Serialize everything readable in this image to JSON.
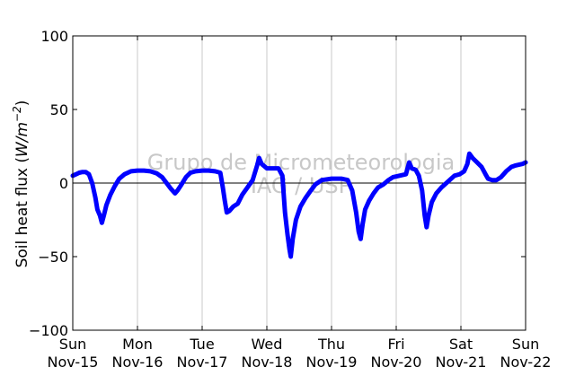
{
  "chart_data": {
    "type": "line",
    "ylabel_prefix": "Soil heat flux (",
    "ylabel_unit": "W/m",
    "ylabel_exp": "−2",
    "ylabel_suffix": ")",
    "ylim": [
      -100,
      100
    ],
    "yticks": [
      {
        "value": 100,
        "label": "100"
      },
      {
        "value": 50,
        "label": "50"
      },
      {
        "value": 0,
        "label": "0"
      },
      {
        "value": -50,
        "label": "−50"
      },
      {
        "value": -100,
        "label": "−100"
      }
    ],
    "xlim": [
      0,
      7
    ],
    "xticks": [
      {
        "value": 0,
        "day": "Sun",
        "date": "Nov-15"
      },
      {
        "value": 1,
        "day": "Mon",
        "date": "Nov-16"
      },
      {
        "value": 2,
        "day": "Tue",
        "date": "Nov-17"
      },
      {
        "value": 3,
        "day": "Wed",
        "date": "Nov-18"
      },
      {
        "value": 4,
        "day": "Thu",
        "date": "Nov-19"
      },
      {
        "value": 5,
        "day": "Fri",
        "date": "Nov-20"
      },
      {
        "value": 6,
        "day": "Sat",
        "date": "Nov-21"
      },
      {
        "value": 7,
        "day": "Sun",
        "date": "Nov-22"
      }
    ],
    "grid": "vertical",
    "zero_line": true,
    "watermark": [
      "Grupo de Micrometeorologia",
      "IAG / USP"
    ],
    "colors": {
      "series": "#0000ff",
      "grid": "#c8c8c8",
      "axis": "#000000",
      "watermark": "#c8c8c8"
    },
    "series": [
      {
        "points": [
          [
            0.0,
            5
          ],
          [
            0.05,
            6
          ],
          [
            0.1,
            7
          ],
          [
            0.15,
            7.5
          ],
          [
            0.2,
            7.5
          ],
          [
            0.25,
            6
          ],
          [
            0.3,
            0
          ],
          [
            0.35,
            -10
          ],
          [
            0.38,
            -18
          ],
          [
            0.42,
            -22
          ],
          [
            0.45,
            -27
          ],
          [
            0.48,
            -22
          ],
          [
            0.52,
            -15
          ],
          [
            0.58,
            -8
          ],
          [
            0.65,
            -2
          ],
          [
            0.72,
            3
          ],
          [
            0.8,
            6
          ],
          [
            0.9,
            8
          ],
          [
            1.0,
            8.5
          ],
          [
            1.1,
            8.5
          ],
          [
            1.2,
            8
          ],
          [
            1.3,
            6.5
          ],
          [
            1.38,
            4
          ],
          [
            1.45,
            0
          ],
          [
            1.52,
            -4
          ],
          [
            1.58,
            -7
          ],
          [
            1.62,
            -5
          ],
          [
            1.68,
            -1
          ],
          [
            1.75,
            4
          ],
          [
            1.82,
            7
          ],
          [
            1.9,
            8
          ],
          [
            2.0,
            8.5
          ],
          [
            2.1,
            8.5
          ],
          [
            2.2,
            8
          ],
          [
            2.28,
            7
          ],
          [
            2.32,
            -3
          ],
          [
            2.35,
            -12
          ],
          [
            2.38,
            -20
          ],
          [
            2.42,
            -19
          ],
          [
            2.48,
            -16
          ],
          [
            2.55,
            -14
          ],
          [
            2.62,
            -8
          ],
          [
            2.7,
            -3
          ],
          [
            2.78,
            2
          ],
          [
            2.85,
            12
          ],
          [
            2.88,
            17
          ],
          [
            2.92,
            13
          ],
          [
            3.0,
            10
          ],
          [
            3.1,
            10
          ],
          [
            3.18,
            10
          ],
          [
            3.24,
            5
          ],
          [
            3.28,
            -20
          ],
          [
            3.32,
            -35
          ],
          [
            3.35,
            -45
          ],
          [
            3.37,
            -50
          ],
          [
            3.4,
            -38
          ],
          [
            3.45,
            -25
          ],
          [
            3.52,
            -16
          ],
          [
            3.6,
            -10
          ],
          [
            3.68,
            -5
          ],
          [
            3.75,
            -1
          ],
          [
            3.85,
            2
          ],
          [
            4.0,
            3
          ],
          [
            4.15,
            3
          ],
          [
            4.25,
            2
          ],
          [
            4.32,
            -5
          ],
          [
            4.38,
            -20
          ],
          [
            4.42,
            -33
          ],
          [
            4.45,
            -38
          ],
          [
            4.48,
            -28
          ],
          [
            4.52,
            -18
          ],
          [
            4.58,
            -12
          ],
          [
            4.65,
            -7
          ],
          [
            4.72,
            -3
          ],
          [
            4.8,
            -1
          ],
          [
            4.88,
            2
          ],
          [
            4.95,
            4
          ],
          [
            5.05,
            5
          ],
          [
            5.15,
            6
          ],
          [
            5.2,
            14
          ],
          [
            5.24,
            10
          ],
          [
            5.3,
            9
          ],
          [
            5.35,
            5
          ],
          [
            5.4,
            -5
          ],
          [
            5.44,
            -22
          ],
          [
            5.47,
            -30
          ],
          [
            5.5,
            -22
          ],
          [
            5.55,
            -13
          ],
          [
            5.62,
            -7
          ],
          [
            5.7,
            -3
          ],
          [
            5.8,
            1
          ],
          [
            5.9,
            5
          ],
          [
            5.98,
            6
          ],
          [
            6.05,
            8
          ],
          [
            6.1,
            13
          ],
          [
            6.13,
            20
          ],
          [
            6.18,
            17
          ],
          [
            6.25,
            14
          ],
          [
            6.32,
            11
          ],
          [
            6.38,
            6
          ],
          [
            6.42,
            3
          ],
          [
            6.48,
            2
          ],
          [
            6.55,
            2
          ],
          [
            6.62,
            4
          ],
          [
            6.7,
            8
          ],
          [
            6.78,
            11
          ],
          [
            6.85,
            12
          ],
          [
            6.95,
            13
          ],
          [
            7.0,
            14
          ]
        ]
      }
    ]
  }
}
